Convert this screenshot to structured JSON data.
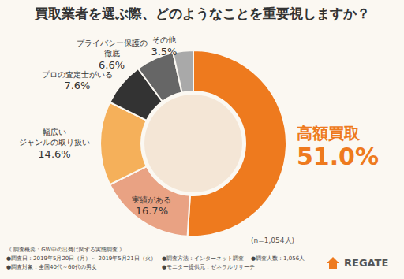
{
  "chart_data": {
    "type": "pie",
    "title": "買取業者を選ぶ際、どのようなことを重要視しますか？",
    "categories": [
      "高額買取",
      "実績がある",
      "幅広い\nジャンルの取り扱い",
      "プロの査定士がいる",
      "プライバシー保護の\n徹底",
      "その他"
    ],
    "values": [
      51.0,
      16.7,
      14.6,
      7.6,
      6.6,
      3.5
    ],
    "value_labels": [
      "51.0%",
      "16.7%",
      "14.6%",
      "7.6%",
      "6.6%",
      "3.5%"
    ],
    "colors": [
      "#ee7a1e",
      "#e9a283",
      "#f5b05a",
      "#333333",
      "#666666",
      "#a9a9a9"
    ],
    "data_labels": true,
    "annotation": "(n=1,054人)",
    "footer": {
      "heading": "《 調査概要：GW中の出費に関する実態調査 》",
      "items": [
        "●調査日：2019年5月20日（月）～ 2019年5月21日（火）",
        "●調査方法：インターネット調査",
        "●調査人数：1,056人",
        "●調査対象：全国40代～60代の男女",
        "●モニター提供元：ゼネラルリサーチ"
      ]
    },
    "logo": "REGATE"
  }
}
